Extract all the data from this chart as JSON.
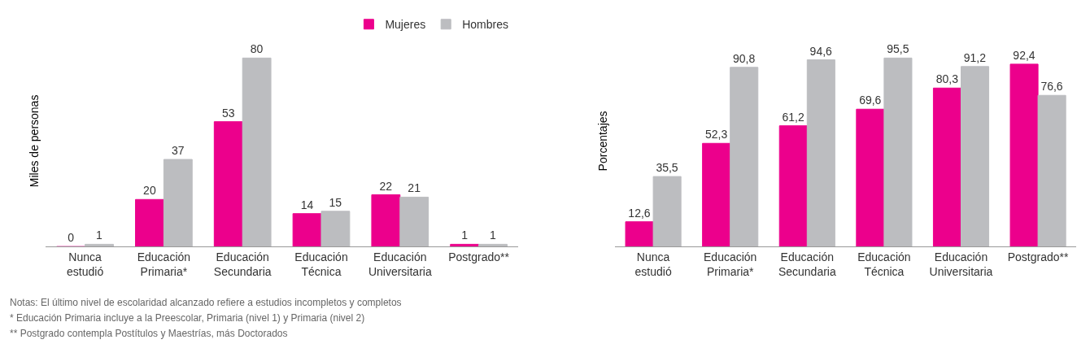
{
  "chart_data": [
    {
      "type": "bar",
      "ylabel": "Miles de personas",
      "categories": [
        "Nunca\nestudió",
        "Educación\nPrimaria*",
        "Educación\nSecundaria",
        "Educación\nTécnica",
        "Educación\nUniversitaria",
        "Postgrado**"
      ],
      "series": [
        {
          "name": "Mujeres",
          "color": "#ec008c",
          "values": [
            0,
            20,
            53,
            14,
            22,
            1
          ]
        },
        {
          "name": "Hombres",
          "color": "#bcbdc0",
          "values": [
            1,
            37,
            80,
            15,
            21,
            1
          ]
        }
      ],
      "data_labels": true,
      "legend": "top right",
      "annotations": [
        "Notas: El último nivel de escolaridad alcanzado refiere a estudios incompletos y completos",
        "* Educación Primaria incluye a la Preescolar, Primaria (nivel 1) y Primaria (nivel 2)",
        "** Postgrado contempla Postítulos y Maestrías, más Doctorados"
      ]
    },
    {
      "type": "bar",
      "ylabel": "Porcentajes",
      "categories": [
        "Nunca\nestudió",
        "Educación\nPrimaria*",
        "Educación\nSecundaria",
        "Educación\nTécnica",
        "Educación\nUniversitaria",
        "Postgrado**"
      ],
      "series": [
        {
          "color": "#ec008c",
          "values": [
            12.6,
            52.3,
            61.2,
            69.6,
            80.3,
            92.4
          ],
          "value_labels": [
            "12,6",
            "52,3",
            "61,2",
            "69,6",
            "80,3",
            "92,4"
          ]
        },
        {
          "color": "#bcbdc0",
          "values": [
            35.5,
            90.8,
            94.6,
            95.5,
            91.2,
            76.6
          ],
          "value_labels": [
            "35,5",
            "90,8",
            "94,6",
            "95,5",
            "91,2",
            "76,6"
          ]
        }
      ],
      "legend": false
    }
  ]
}
